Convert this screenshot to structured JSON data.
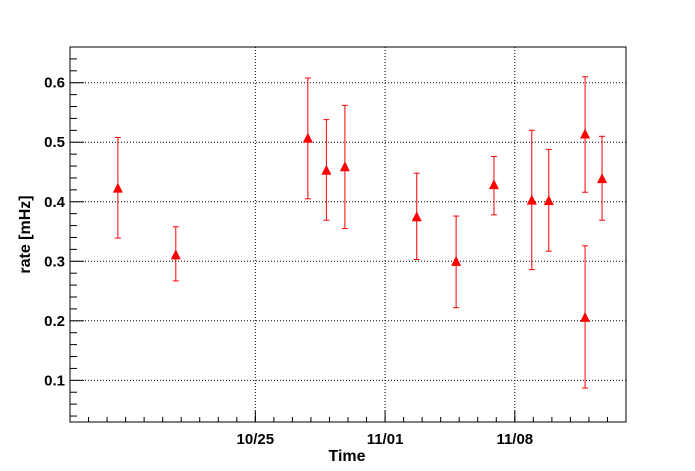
{
  "chart_data": {
    "type": "scatter",
    "title": "",
    "xlabel": "Time",
    "ylabel": "rate [mHz]",
    "x_axis": {
      "type": "date",
      "range": [
        "2023-10-15",
        "2023-11-14"
      ],
      "ticks": [
        {
          "date": "2023-10-25",
          "label": "10/25"
        },
        {
          "date": "2023-11-01",
          "label": "11/01"
        },
        {
          "date": "2023-11-08",
          "label": "11/08"
        }
      ]
    },
    "y_axis": {
      "range": [
        0.03,
        0.66
      ],
      "ticks": [
        {
          "value": 0.1,
          "label": "0.1"
        },
        {
          "value": 0.2,
          "label": "0.2"
        },
        {
          "value": 0.3,
          "label": "0.3"
        },
        {
          "value": 0.4,
          "label": "0.4"
        },
        {
          "value": 0.5,
          "label": "0.5"
        },
        {
          "value": 0.6,
          "label": "0.6"
        }
      ]
    },
    "grid": true,
    "marker_color": "#ff0000",
    "points": [
      {
        "x": "2023-10-17 14:00",
        "y": 0.422,
        "y_low": 0.339,
        "y_high": 0.508
      },
      {
        "x": "2023-10-20 17:00",
        "y": 0.31,
        "y_low": 0.267,
        "y_high": 0.358
      },
      {
        "x": "2023-10-27 20:00",
        "y": 0.506,
        "y_low": 0.405,
        "y_high": 0.608
      },
      {
        "x": "2023-10-28 20:00",
        "y": 0.452,
        "y_low": 0.369,
        "y_high": 0.538
      },
      {
        "x": "2023-10-29 20:00",
        "y": 0.458,
        "y_low": 0.355,
        "y_high": 0.562
      },
      {
        "x": "2023-11-02 17:00",
        "y": 0.374,
        "y_low": 0.303,
        "y_high": 0.448
      },
      {
        "x": "2023-11-04 20:00",
        "y": 0.299,
        "y_low": 0.222,
        "y_high": 0.376
      },
      {
        "x": "2023-11-06 21:00",
        "y": 0.428,
        "y_low": 0.378,
        "y_high": 0.476
      },
      {
        "x": "2023-11-08 22:00",
        "y": 0.402,
        "y_low": 0.286,
        "y_high": 0.52
      },
      {
        "x": "2023-11-09 20:00",
        "y": 0.401,
        "y_low": 0.317,
        "y_high": 0.488
      },
      {
        "x": "2023-11-11 19:00",
        "y": 0.205,
        "y_low": 0.087,
        "y_high": 0.326
      },
      {
        "x": "2023-11-11 19:00",
        "y": 0.513,
        "y_low": 0.416,
        "y_high": 0.61
      },
      {
        "x": "2023-11-12 17:00",
        "y": 0.438,
        "y_low": 0.369,
        "y_high": 0.51
      }
    ]
  }
}
